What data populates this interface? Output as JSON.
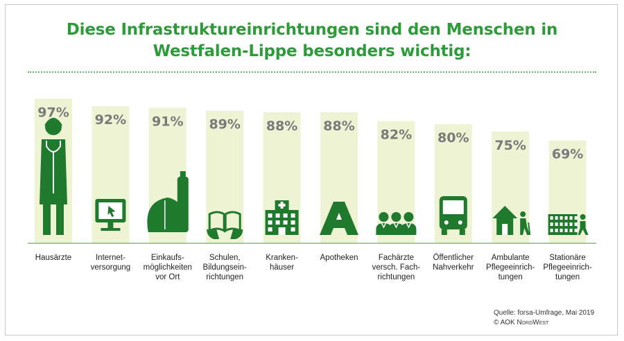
{
  "title": {
    "line1": "Diese Infrastruktureinrichtungen sind den Menschen in",
    "line2": "Westfalen-Lippe besonders wichtig:"
  },
  "colors": {
    "accent": "#2e9b3a",
    "icon": "#1f7a2e",
    "bar": "#eef3d3",
    "baseline": "#7cbf72",
    "value_text": "#7a7a7a"
  },
  "chart_data": {
    "type": "bar",
    "categories": [
      "Hausärzte",
      "Internet-\nversorgung",
      "Einkaufs-\nmöglichkeiten\nvor Ort",
      "Schulen,\nBildungsein-\nrichtungen",
      "Kranken-\nhäuser",
      "Apotheken",
      "Fachärzte\nversch. Fach-\nrichtungen",
      "Öffentlicher\nNahverkehr",
      "Ambulante\nPflegeeinrich-\ntungen",
      "Stationäre\nPflegeeinrich-\ntungen"
    ],
    "values": [
      97,
      92,
      91,
      89,
      88,
      88,
      82,
      80,
      75,
      69
    ],
    "value_labels": [
      "97%",
      "92%",
      "91%",
      "89%",
      "88%",
      "88%",
      "82%",
      "80%",
      "75%",
      "69%"
    ],
    "icons": [
      "doctor-icon",
      "monitor-icon",
      "bread-bottle-icon",
      "book-icon",
      "hospital-icon",
      "pharmacy-icon",
      "specialists-icon",
      "bus-icon",
      "house-care-icon",
      "nursing-home-icon"
    ],
    "ylim": [
      0,
      100
    ]
  },
  "source": {
    "line1": "Quelle: forsa-Umfrage, Mai 2019",
    "line2_prefix": "© AOK ",
    "line2_brand": "NordWest"
  }
}
